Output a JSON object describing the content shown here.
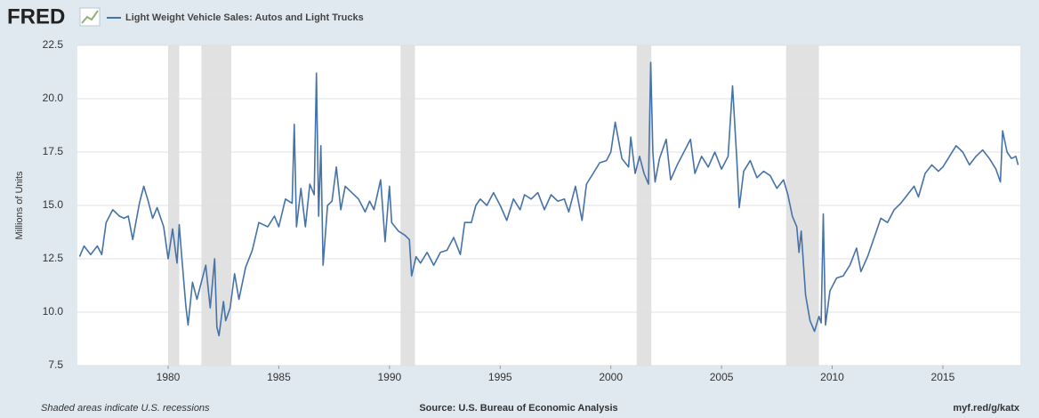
{
  "logo": "FRED",
  "footer": {
    "note": "Shaded areas indicate U.S. recessions",
    "source": "Source: U.S. Bureau of Economic Analysis",
    "link": "myf.red/g/katx"
  },
  "chart_data": {
    "type": "line",
    "ylabel": "Millions of Units",
    "xlim": [
      1975.9,
      2018.5
    ],
    "xticks": [
      1980,
      1985,
      1990,
      1995,
      2000,
      2005,
      2010,
      2015
    ],
    "ylim": [
      7.5,
      22.5
    ],
    "yticks": [
      {
        "value": 7.5,
        "label": "7.5"
      },
      {
        "value": 10,
        "label": "10.0"
      },
      {
        "value": 12.5,
        "label": "12.5"
      },
      {
        "value": 15,
        "label": "15.0"
      },
      {
        "value": 17.5,
        "label": "17.5"
      },
      {
        "value": 20,
        "label": "20.0"
      },
      {
        "value": 22.5,
        "label": "22.5"
      }
    ],
    "grid": true,
    "recessions": [
      [
        1980.0,
        1980.5
      ],
      [
        1981.5,
        1982.85
      ],
      [
        1990.5,
        1991.15
      ],
      [
        2001.17,
        2001.83
      ],
      [
        2007.92,
        2009.4
      ]
    ],
    "recession_color": "#e1e1e1",
    "x": [
      1976.0,
      1976.2,
      1976.5,
      1976.8,
      1977.0,
      1977.2,
      1977.5,
      1977.8,
      1978.0,
      1978.2,
      1978.4,
      1978.7,
      1978.9,
      1979.1,
      1979.3,
      1979.5,
      1979.8,
      1980.0,
      1980.2,
      1980.4,
      1980.5,
      1980.6,
      1980.8,
      1980.9,
      1981.1,
      1981.3,
      1981.5,
      1981.7,
      1981.9,
      1982.1,
      1982.2,
      1982.3,
      1982.5,
      1982.6,
      1982.8,
      1983.0,
      1983.2,
      1983.5,
      1983.8,
      1984.1,
      1984.5,
      1984.8,
      1985.0,
      1985.3,
      1985.6,
      1985.7,
      1985.8,
      1986.0,
      1986.2,
      1986.4,
      1986.6,
      1986.7,
      1986.8,
      1986.9,
      1987.0,
      1987.2,
      1987.4,
      1987.6,
      1987.8,
      1988.0,
      1988.3,
      1988.6,
      1988.9,
      1989.1,
      1989.3,
      1989.6,
      1989.8,
      1990.0,
      1990.1,
      1990.4,
      1990.7,
      1990.9,
      1991.0,
      1991.2,
      1991.4,
      1991.7,
      1992.0,
      1992.3,
      1992.6,
      1992.9,
      1993.2,
      1993.4,
      1993.7,
      1993.9,
      1994.1,
      1994.4,
      1994.7,
      1995.0,
      1995.3,
      1995.6,
      1995.9,
      1996.1,
      1996.4,
      1996.7,
      1997.0,
      1997.3,
      1997.6,
      1997.9,
      1998.1,
      1998.4,
      1998.7,
      1998.9,
      1999.2,
      1999.5,
      1999.8,
      2000.0,
      2000.2,
      2000.5,
      2000.8,
      2000.9,
      2001.1,
      2001.3,
      2001.5,
      2001.7,
      2001.8,
      2001.9,
      2002.0,
      2002.2,
      2002.5,
      2002.7,
      2003.0,
      2003.3,
      2003.6,
      2003.8,
      2004.1,
      2004.4,
      2004.7,
      2005.0,
      2005.3,
      2005.5,
      2005.7,
      2005.8,
      2006.0,
      2006.3,
      2006.6,
      2006.9,
      2007.2,
      2007.5,
      2007.8,
      2008.0,
      2008.2,
      2008.4,
      2008.5,
      2008.6,
      2008.8,
      2009.0,
      2009.2,
      2009.4,
      2009.5,
      2009.6,
      2009.7,
      2009.9,
      2010.2,
      2010.5,
      2010.8,
      2011.1,
      2011.3,
      2011.6,
      2011.9,
      2012.2,
      2012.5,
      2012.8,
      2013.1,
      2013.4,
      2013.7,
      2013.9,
      2014.2,
      2014.5,
      2014.8,
      2015.0,
      2015.3,
      2015.6,
      2015.9,
      2016.2,
      2016.5,
      2016.8,
      2017.1,
      2017.4,
      2017.6,
      2017.7,
      2017.9,
      2018.1,
      2018.3,
      2018.4
    ],
    "series": [
      {
        "name": "Light Weight Vehicle Sales: Autos and Light Trucks",
        "color": "#4572a7",
        "values": [
          12.6,
          13.1,
          12.7,
          13.1,
          12.7,
          14.2,
          14.8,
          14.5,
          14.4,
          14.5,
          13.4,
          15.1,
          15.9,
          15.2,
          14.4,
          14.9,
          14.0,
          12.5,
          13.9,
          12.3,
          14.1,
          12.8,
          10.3,
          9.4,
          11.4,
          10.6,
          11.4,
          12.2,
          10.2,
          12.5,
          9.3,
          8.9,
          10.5,
          9.6,
          10.2,
          11.8,
          10.6,
          12.1,
          12.9,
          14.2,
          14.0,
          14.5,
          14.0,
          15.3,
          15.1,
          18.8,
          14.0,
          15.8,
          14.0,
          16.0,
          15.5,
          21.2,
          14.5,
          17.8,
          12.2,
          15.0,
          15.2,
          16.8,
          14.8,
          15.9,
          15.6,
          15.3,
          14.7,
          15.2,
          14.8,
          16.2,
          13.3,
          15.9,
          14.2,
          13.8,
          13.6,
          13.4,
          11.7,
          12.6,
          12.3,
          12.8,
          12.2,
          12.8,
          12.9,
          13.5,
          12.7,
          14.2,
          14.2,
          15.0,
          15.3,
          15.0,
          15.6,
          15.0,
          14.3,
          15.3,
          14.8,
          15.5,
          15.3,
          15.6,
          14.8,
          15.5,
          15.2,
          15.3,
          14.7,
          15.9,
          14.3,
          16.0,
          16.5,
          17.0,
          17.1,
          17.5,
          18.9,
          17.2,
          16.8,
          18.2,
          16.5,
          17.3,
          16.5,
          16.0,
          21.7,
          17.5,
          16.1,
          17.2,
          18.1,
          16.2,
          16.9,
          17.5,
          18.1,
          16.5,
          17.3,
          16.8,
          17.5,
          16.7,
          17.3,
          20.6,
          17.0,
          14.9,
          16.6,
          17.1,
          16.3,
          16.6,
          16.4,
          15.8,
          16.2,
          15.5,
          14.5,
          14.0,
          12.8,
          13.8,
          10.8,
          9.6,
          9.1,
          9.8,
          9.5,
          14.6,
          9.4,
          11.0,
          11.6,
          11.7,
          12.2,
          13.0,
          11.9,
          12.6,
          13.5,
          14.4,
          14.2,
          14.8,
          15.1,
          15.5,
          15.9,
          15.4,
          16.5,
          16.9,
          16.6,
          16.8,
          17.3,
          17.8,
          17.5,
          16.9,
          17.3,
          17.6,
          17.2,
          16.7,
          16.1,
          18.5,
          17.5,
          17.2,
          17.3,
          16.9
        ]
      }
    ]
  }
}
